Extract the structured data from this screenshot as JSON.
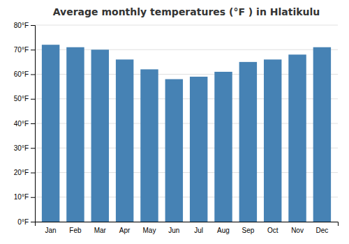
{
  "chart_data": {
    "type": "bar",
    "title": "Average monthly temperatures (°F ) in Hlatikulu",
    "categories": [
      "Jan",
      "Feb",
      "Mar",
      "Apr",
      "May",
      "Jun",
      "Jul",
      "Aug",
      "Sep",
      "Oct",
      "Nov",
      "Dec"
    ],
    "values": [
      72,
      71,
      70,
      66,
      62,
      58,
      59,
      61,
      65,
      66,
      68,
      71
    ],
    "ylim": [
      0,
      80
    ],
    "yticks": [
      {
        "value": 0,
        "label": "0°F"
      },
      {
        "value": 10,
        "label": "10°F"
      },
      {
        "value": 20,
        "label": "20°F"
      },
      {
        "value": 30,
        "label": "30°F"
      },
      {
        "value": 40,
        "label": "40°F"
      },
      {
        "value": 50,
        "label": "50°F"
      },
      {
        "value": 60,
        "label": "60°F"
      },
      {
        "value": 70,
        "label": "70°F"
      },
      {
        "value": 80,
        "label": "80°F"
      }
    ],
    "grid": true
  }
}
